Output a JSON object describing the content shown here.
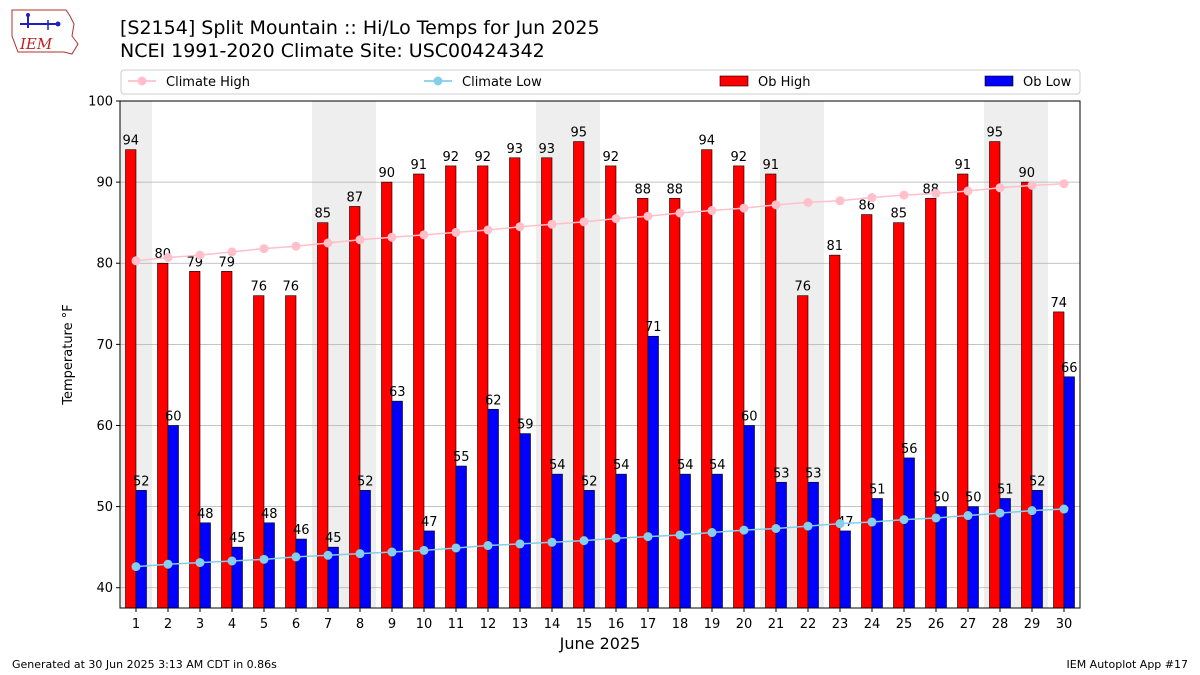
{
  "header": {
    "title_line1": "[S2154] Split Mountain :: Hi/Lo Temps for Jun 2025",
    "title_line2": "NCEI 1991-2020 Climate Site: USC00424342"
  },
  "logo": {
    "text": "IEM"
  },
  "footer": {
    "left": "Generated at 30 Jun 2025 3:13 AM CDT in 0.86s",
    "right": "IEM Autoplot App #17"
  },
  "chart_data": {
    "type": "bar",
    "xlabel": "June 2025",
    "ylabel": "Temperature °F",
    "ylim": [
      37.5,
      100
    ],
    "yticks": [
      40,
      50,
      60,
      70,
      80,
      90,
      100
    ],
    "grid": "horizontal",
    "legend_placement": "top, above plot",
    "shaded_weekend_days": [
      1,
      7,
      8,
      14,
      15,
      21,
      22,
      28,
      29
    ],
    "categories": [
      "1",
      "2",
      "3",
      "4",
      "5",
      "6",
      "7",
      "8",
      "9",
      "10",
      "11",
      "12",
      "13",
      "14",
      "15",
      "16",
      "17",
      "18",
      "19",
      "20",
      "21",
      "22",
      "23",
      "24",
      "25",
      "26",
      "27",
      "28",
      "29",
      "30"
    ],
    "series": [
      {
        "name": "Ob High",
        "kind": "bar",
        "color": "#ff0000",
        "values": [
          94,
          80,
          79,
          79,
          76,
          76,
          85,
          87,
          90,
          91,
          92,
          92,
          93,
          93,
          95,
          92,
          88,
          88,
          94,
          92,
          91,
          76,
          81,
          86,
          85,
          88,
          91,
          95,
          90,
          74
        ],
        "labels": [
          "94",
          "80",
          "79",
          "79",
          "76",
          "76",
          "85",
          "87",
          "90",
          "91",
          "92",
          "92",
          "93",
          "93",
          "95",
          "92",
          "88",
          "88",
          "94",
          "92",
          "91",
          "76",
          "81",
          "86",
          "85",
          "88",
          "91",
          "95",
          "90",
          "74"
        ]
      },
      {
        "name": "Ob Low",
        "kind": "bar",
        "color": "#0000ff",
        "values": [
          52,
          60,
          48,
          45,
          48,
          46,
          45,
          52,
          63,
          47,
          55,
          62,
          59,
          54,
          52,
          54,
          71,
          54,
          54,
          60,
          53,
          53,
          47,
          51,
          56,
          50,
          50,
          51,
          52,
          66
        ],
        "labels": [
          "52",
          "60",
          "48",
          "45",
          "48",
          "46",
          "45",
          "52",
          "63",
          "47",
          "55",
          "62",
          "59",
          "54",
          "52",
          "54",
          "71",
          "54",
          "54",
          "60",
          "53",
          "53",
          "47",
          "51",
          "56",
          "50",
          "50",
          "51",
          "52",
          "66"
        ]
      },
      {
        "name": "Climate High",
        "kind": "line",
        "color": "#ffc0cb",
        "values": [
          80.3,
          80.7,
          81.0,
          81.4,
          81.8,
          82.1,
          82.5,
          82.9,
          83.2,
          83.5,
          83.8,
          84.1,
          84.5,
          84.8,
          85.1,
          85.5,
          85.8,
          86.2,
          86.5,
          86.8,
          87.2,
          87.5,
          87.7,
          88.1,
          88.4,
          88.6,
          88.9,
          89.3,
          89.6,
          89.8
        ]
      },
      {
        "name": "Climate Low",
        "kind": "line",
        "color": "#87ceeb",
        "values": [
          42.6,
          42.9,
          43.1,
          43.3,
          43.5,
          43.8,
          44.0,
          44.2,
          44.4,
          44.6,
          44.9,
          45.2,
          45.4,
          45.6,
          45.8,
          46.1,
          46.3,
          46.5,
          46.8,
          47.1,
          47.3,
          47.6,
          47.9,
          48.1,
          48.4,
          48.6,
          48.9,
          49.2,
          49.5,
          49.7
        ]
      }
    ]
  }
}
